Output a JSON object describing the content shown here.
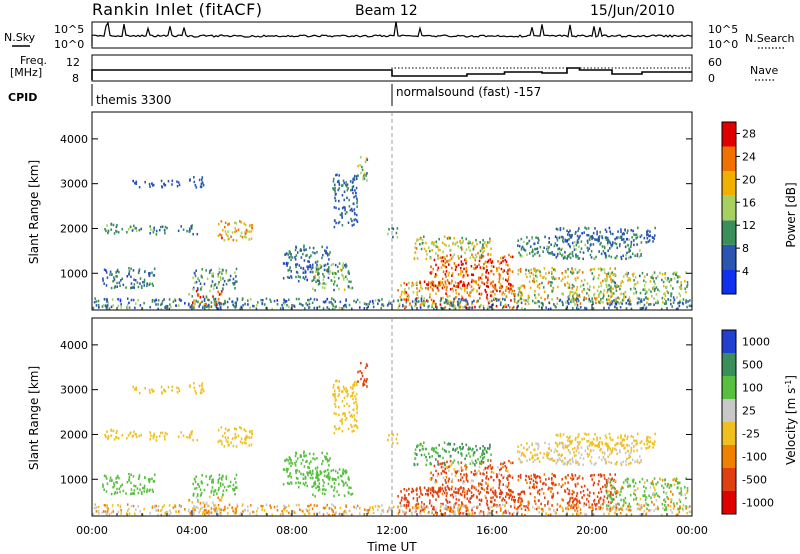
{
  "header": {
    "title": "Rankin Inlet (fitACF)",
    "beam": "Beam 12",
    "date": "15/Jun/2010"
  },
  "top_panels": {
    "nsky_label": "N.Sky",
    "nsearch_label": "N.Search",
    "noise_ticks": [
      "10^5",
      "10^0"
    ],
    "freq_label": "Freq.",
    "freq_unit": "[MHz]",
    "freq_ticks": [
      "12",
      "8"
    ],
    "nave_label": "Nave",
    "nave_ticks": [
      "60",
      "0"
    ],
    "cpid_label": "CPID",
    "cpid_segments": [
      {
        "name": "themis 3300",
        "start_hour": 0
      },
      {
        "name": "normalsound (fast) -157",
        "start_hour": 12
      }
    ]
  },
  "chart_data": [
    {
      "type": "heatmap",
      "title": "",
      "xlabel": "Time UT",
      "ylabel": "Slant Range [km]",
      "x_ticks": [
        "00:00",
        "04:00",
        "08:00",
        "12:00",
        "16:00",
        "20:00",
        "00:00"
      ],
      "x_range_hours": [
        0,
        24
      ],
      "y_ticks": [
        1000,
        2000,
        3000,
        4000
      ],
      "ylim": [
        180,
        4600
      ],
      "colorbar": {
        "label": "Power [dB]",
        "ticks": [
          4,
          8,
          12,
          16,
          20,
          24,
          28
        ],
        "range": [
          0,
          30
        ],
        "colors": [
          "#1030f0",
          "#2a55b0",
          "#3a8e5a",
          "#a8d060",
          "#f0b000",
          "#f07000",
          "#e00000"
        ]
      }
    },
    {
      "type": "heatmap",
      "title": "",
      "xlabel": "Time UT",
      "ylabel": "Slant Range [km]",
      "x_ticks": [
        "00:00",
        "04:00",
        "08:00",
        "12:00",
        "16:00",
        "20:00",
        "00:00"
      ],
      "x_range_hours": [
        0,
        24
      ],
      "y_ticks": [
        1000,
        2000,
        3000,
        4000
      ],
      "ylim": [
        180,
        4600
      ],
      "colorbar": {
        "label": "Velocity [m s",
        "label_sup": "-1",
        "label_end": "]",
        "ticks": [
          "1000",
          "500",
          "100",
          "25",
          "-25",
          "-100",
          "-500",
          "-1000"
        ],
        "colors": [
          "#2040d0",
          "#3a8e5a",
          "#58c040",
          "#c8c8c8",
          "#f0c020",
          "#f08000",
          "#e04010",
          "#e00000"
        ]
      }
    }
  ]
}
